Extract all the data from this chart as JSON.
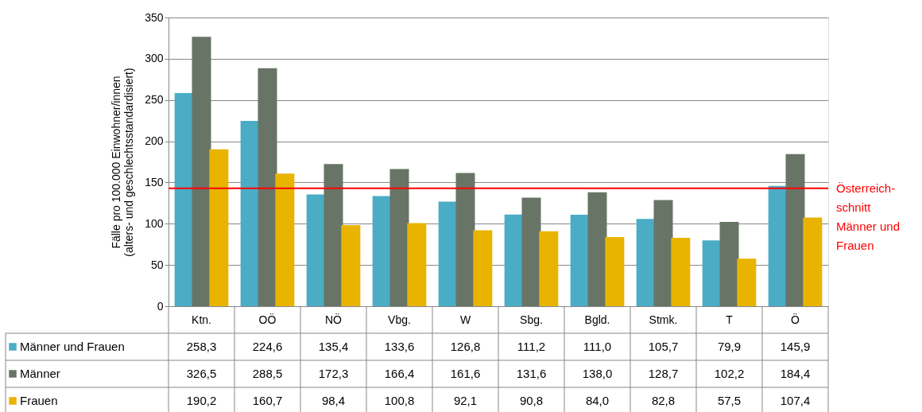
{
  "chart_data": {
    "type": "bar",
    "ylabel": "Fälle pro 100.000 Einwohner/innen\n(alters- und geschlechtsstandardisiert)",
    "categories": [
      "Ktn.",
      "OÖ",
      "NÖ",
      "Vbg.",
      "W",
      "Sbg.",
      "Bgld.",
      "Stmk.",
      "T",
      "Ö"
    ],
    "series": [
      {
        "name": "Männer und Frauen",
        "color": "#4bacc6",
        "values": [
          258.3,
          224.6,
          135.4,
          133.6,
          126.8,
          111.2,
          111.0,
          105.7,
          79.9,
          145.9
        ],
        "value_labels": [
          "258,3",
          "224,6",
          "135,4",
          "133,6",
          "126,8",
          "111,2",
          "111,0",
          "105,7",
          "79,9",
          "145,9"
        ]
      },
      {
        "name": "Männer",
        "color": "#687566",
        "values": [
          326.5,
          288.5,
          172.3,
          166.4,
          161.6,
          131.6,
          138.0,
          128.7,
          102.2,
          184.4
        ],
        "value_labels": [
          "326,5",
          "288,5",
          "172,3",
          "166,4",
          "161,6",
          "131,6",
          "138,0",
          "128,7",
          "102,2",
          "184,4"
        ]
      },
      {
        "name": "Frauen",
        "color": "#e8b400",
        "values": [
          190.2,
          160.7,
          98.4,
          100.8,
          92.1,
          90.8,
          84.0,
          82.8,
          57.5,
          107.4
        ],
        "value_labels": [
          "190,2",
          "160,7",
          "98,4",
          "100,8",
          "92,1",
          "90,8",
          "84,0",
          "82,8",
          "57,5",
          "107,4"
        ]
      }
    ],
    "ylim": [
      0,
      350
    ],
    "yticks": [
      0,
      50,
      100,
      150,
      200,
      250,
      300,
      350
    ],
    "grid": "y",
    "legend": "bottom left",
    "ref_lines": [
      {
        "axis": "y",
        "value": 143,
        "label": "Österreich-\nschnitt\nMänner und\nFrauen",
        "color": "#ff0000"
      }
    ]
  }
}
